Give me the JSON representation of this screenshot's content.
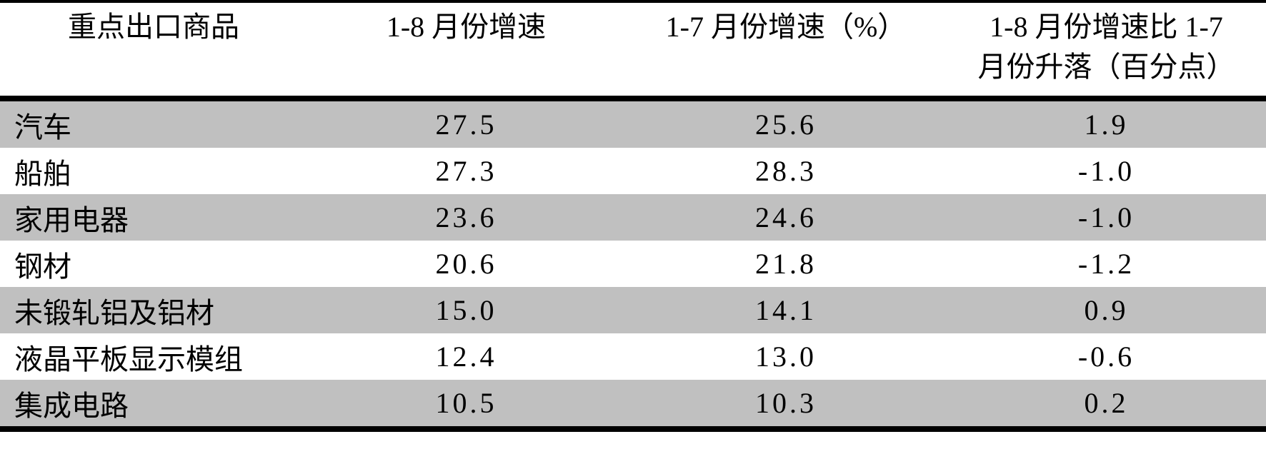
{
  "page": {
    "background": "#ffffff",
    "rule_color": "#000000",
    "row_shade_color": "#c0c0c0",
    "text_color": "#000000"
  },
  "table": {
    "headers": {
      "commodity": "重点出口商品",
      "growth_1_8": "1-8 月份增速",
      "growth_1_7": "1-7 月份增速（%）",
      "change_line1": "1-8 月份增速比 1-7",
      "change_line2": "月份升落（百分点）"
    },
    "rows": [
      {
        "name": "汽车",
        "growth_1_8": "27.5",
        "growth_1_7": "25.6",
        "change": "1.9"
      },
      {
        "name": "船舶",
        "growth_1_8": "27.3",
        "growth_1_7": "28.3",
        "change": "-1.0"
      },
      {
        "name": "家用电器",
        "growth_1_8": "23.6",
        "growth_1_7": "24.6",
        "change": "-1.0"
      },
      {
        "name": "钢材",
        "growth_1_8": "20.6",
        "growth_1_7": "21.8",
        "change": "-1.2"
      },
      {
        "name": "未锻轧铝及铝材",
        "growth_1_8": "15.0",
        "growth_1_7": "14.1",
        "change": "0.9"
      },
      {
        "name": "液晶平板显示模组",
        "growth_1_8": "12.4",
        "growth_1_7": "13.0",
        "change": "-0.6"
      },
      {
        "name": "集成电路",
        "growth_1_8": "10.5",
        "growth_1_7": "10.3",
        "change": "0.2"
      }
    ]
  }
}
